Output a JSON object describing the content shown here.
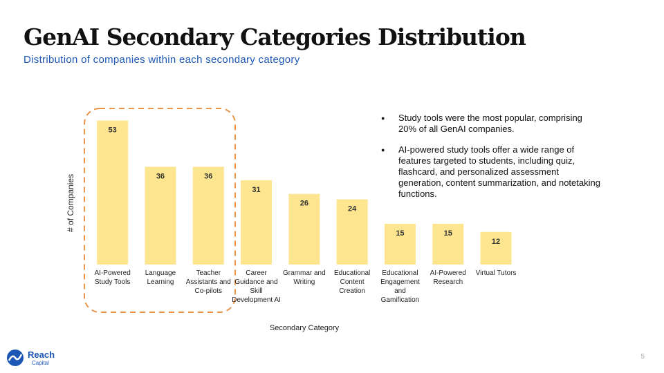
{
  "chart_data": {
    "type": "bar",
    "title": "GenAI Secondary Categories Distribution",
    "subtitle": "Distribution of companies within each secondary category",
    "categories": [
      "AI-Powered Study Tools",
      "Language Learning",
      "Teacher Assistants and Co-pilots",
      "Career Guidance and Skill Development AI",
      "Grammar and Writing",
      "Educational Content Creation",
      "Educational Engagement and Gamification",
      "AI-Powered Research",
      "Virtual Tutors"
    ],
    "values": [
      53,
      36,
      36,
      31,
      26,
      24,
      15,
      15,
      12
    ],
    "color": "#fde68f",
    "ylim": [
      0,
      60
    ],
    "x_label": "Secondary Category",
    "y_label": "# of Companies",
    "notes": [
      "Study tools were the most popular, comprising 20% of all GenAI companies.",
      "AI-powered study tools offer a wide range of features targeted to students, including quiz, flashcard, and personalized assessment generation, content summarization, and notetaking functions."
    ]
  },
  "footer": {
    "logo_name": "Reach",
    "logo_sub": "Capital",
    "page_number": "5"
  }
}
